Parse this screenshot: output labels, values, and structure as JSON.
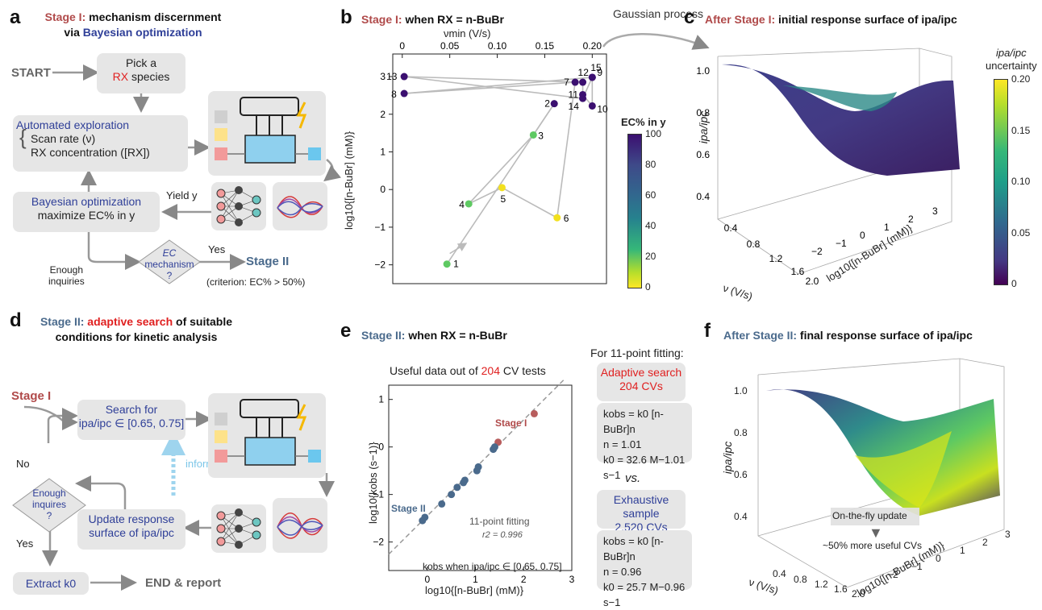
{
  "panels": {
    "a": "a",
    "b": "b",
    "c": "c",
    "d": "d",
    "e": "e",
    "f": "f"
  },
  "a": {
    "title_stage": "Stage I:",
    "title_rest": "mechanism discernment",
    "title_line2_pre": "via ",
    "title_line2_bold": "Bayesian optimization",
    "start": "START",
    "pick_line1": "Pick a",
    "pick_rx": "RX",
    "pick_line2": "species",
    "auto_title": "Automated exploration",
    "auto_line1": "Scan rate (ν)",
    "auto_line2": "RX concentration ([RX])",
    "bayes_title": "Bayesian optimization",
    "bayes_line": "maximize EC% in y",
    "yield": "Yield y",
    "diamond_line1": "EC",
    "diamond_line2": "mechanism",
    "diamond_line3": "?",
    "yes": "Yes",
    "stage2": "Stage II",
    "criterion": "(criterion: EC% > 50%)",
    "enough_line1": "Enough",
    "enough_line2": "inquiries"
  },
  "b": {
    "title_stage": "Stage I:",
    "title_rest": "when RX = n-BuBr",
    "top_axis_label": "νmin (V/s)",
    "left_axis_label": "log10{[n-BuBr] (mM)}",
    "cbar_title": "EC% in y",
    "gp_label": "Gaussian process"
  },
  "c": {
    "title_stage": "After Stage I:",
    "title_rest": "initial response surface of ipa/ipc",
    "z_label": "ipa/ipc",
    "x_label": "ν (V/s)",
    "y_label": "log10{[n-BuBr] (mM)}",
    "cbar_title1": "ipa/ipc",
    "cbar_title2": "uncertainty",
    "cbar_ticks": [
      "0.20",
      "0.15",
      "0.10",
      "0.05",
      "0"
    ],
    "z_ticks": [
      "1.0",
      "0.8",
      "0.6",
      "0.4"
    ],
    "x_ticks": [
      "0.4",
      "0.8",
      "1.2",
      "1.6",
      "2.0"
    ],
    "y_ticks": [
      "−2",
      "−1",
      "0",
      "1",
      "2",
      "3"
    ]
  },
  "d": {
    "title_stage": "Stage II:",
    "title_red": "adaptive search",
    "title_rest": "of suitable",
    "title_line2": "conditions for kinetic analysis",
    "stage1": "Stage I",
    "search_line1": "Search for",
    "search_line2": "ipa/ipc ∈ [0.65, 0.75]",
    "no": "No",
    "yes": "Yes",
    "enough_line1": "Enough",
    "enough_line2": "inquires",
    "enough_line3": "?",
    "inform": "inform",
    "update_line1": "Update response",
    "update_line2": "surface of ipa/ipc",
    "extract": "Extract k0",
    "end": "END & report"
  },
  "e": {
    "title_stage": "Stage II:",
    "title_rest": "when RX = n-BuBr",
    "useful_pre": "Useful data out of ",
    "useful_num": "204",
    "useful_post": " CV tests",
    "stage1_label": "Stage I",
    "stage2_label": "Stage II",
    "fit_label": "11-point fitting",
    "r2": "r2 = 0.996",
    "kobs_note": "kobs when ipa/ipc ∈ [0.65, 0.75]",
    "xlabel": "log10{[n-BuBr] (mM)}",
    "ylabel": "log10{kobs (s−1)}",
    "fit_header": "For 11-point fitting:",
    "adaptive_title1": "Adaptive search",
    "adaptive_title2": "204 CVs",
    "adaptive_eq": "kobs = k0 [n-BuBr]n",
    "adaptive_n": "n = 1.01",
    "adaptive_k0": "k0 = 32.6 M−1.01 s−1",
    "vs": "vs.",
    "exhaustive_title1": "Exhaustive sample",
    "exhaustive_title2": "2,520 CVs",
    "exhaustive_eq": "kobs = k0 [n-BuBr]n",
    "exhaustive_n": "n = 0.96",
    "exhaustive_k0": "k0 = 25.7 M−0.96 s−1"
  },
  "f": {
    "title_stage": "After Stage II:",
    "title_rest": "final response surface of ipa/ipc",
    "z_label": "ipa/ipc",
    "x_label": "ν (V/s)",
    "y_label": "log10{[n-BuBr] (mM)}",
    "update_text": "On-the-fly update",
    "more_text": "~50% more useful CVs",
    "z_ticks": [
      "1.0",
      "0.8",
      "0.6",
      "0.4"
    ],
    "x_ticks": [
      "0.4",
      "0.8",
      "1.2",
      "1.6",
      "2.0"
    ],
    "y_ticks": [
      "−2",
      "−1",
      "0",
      "1",
      "2",
      "3"
    ]
  },
  "chart_data": [
    {
      "type": "scatter",
      "title": "Stage I: when RX = n-BuBr",
      "xlabel": "νmin (V/s)",
      "ylabel": "log10{[n-BuBr] (mM)}",
      "xlim": [
        -0.01,
        0.215
      ],
      "ylim": [
        -2.5,
        3.6
      ],
      "x_ticks": [
        0,
        0.05,
        0.1,
        0.15,
        0.2
      ],
      "y_ticks": [
        -2,
        -1,
        0,
        1,
        2,
        3
      ],
      "colorbar": {
        "label": "EC% in y",
        "min": 0,
        "max": 100,
        "ticks": [
          0,
          20,
          40,
          60,
          80,
          100
        ]
      },
      "points": [
        {
          "label": "1",
          "x": 0.047,
          "y": -1.98,
          "ec": 50
        },
        {
          "label": "2",
          "x": 0.16,
          "y": 2.28,
          "ec": 100
        },
        {
          "label": "3",
          "x": 0.138,
          "y": 1.45,
          "ec": 50
        },
        {
          "label": "4",
          "x": 0.07,
          "y": -0.38,
          "ec": 50
        },
        {
          "label": "5",
          "x": 0.105,
          "y": 0.05,
          "ec": 0
        },
        {
          "label": "6",
          "x": 0.163,
          "y": -0.75,
          "ec": 0
        },
        {
          "label": "7",
          "x": 0.182,
          "y": 2.85,
          "ec": 100
        },
        {
          "label": "8",
          "x": 0.002,
          "y": 2.55,
          "ec": 100
        },
        {
          "label": "9",
          "x": 0.2,
          "y": 2.98,
          "ec": 100
        },
        {
          "label": "10",
          "x": 0.2,
          "y": 2.22,
          "ec": 100
        },
        {
          "label": "11",
          "x": 0.19,
          "y": 2.52,
          "ec": 100
        },
        {
          "label": "12",
          "x": 0.19,
          "y": 2.85,
          "ec": 100
        },
        {
          "label": "13",
          "x": 0.002,
          "y": 3.0,
          "ec": 100
        },
        {
          "label": "14",
          "x": 0.19,
          "y": 2.42,
          "ec": 100
        },
        {
          "label": "15",
          "x": 0.2,
          "y": 2.98,
          "ec": 100
        }
      ]
    },
    {
      "type": "scatter",
      "title": "Stage II: when RX = n-BuBr",
      "xlabel": "log10{[n-BuBr] (mM)}",
      "ylabel": "log10{kobs (s−1)}",
      "xlim": [
        -0.8,
        3.0
      ],
      "ylim": [
        -2.6,
        1.3
      ],
      "x_ticks": [
        0,
        1,
        2,
        3
      ],
      "y_ticks": [
        -2,
        -1,
        0,
        1
      ],
      "series": [
        {
          "name": "Stage I",
          "points": [
            [
              1.47,
              0.1
            ],
            [
              2.22,
              0.7
            ]
          ]
        },
        {
          "name": "Stage II",
          "points": [
            [
              -0.1,
              -1.55
            ],
            [
              -0.05,
              -1.48
            ],
            [
              0.3,
              -1.2
            ],
            [
              0.5,
              -1.0
            ],
            [
              0.62,
              -0.85
            ],
            [
              0.75,
              -0.75
            ],
            [
              0.78,
              -0.7
            ],
            [
              1.03,
              -0.5
            ],
            [
              1.06,
              -0.42
            ],
            [
              1.37,
              -0.05
            ],
            [
              1.4,
              0.0
            ]
          ]
        }
      ],
      "fit_line": {
        "slope": 1.01,
        "intercept": -1.45
      }
    }
  ]
}
